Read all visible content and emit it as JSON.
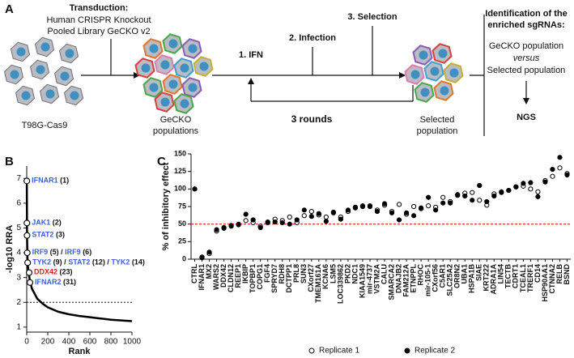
{
  "diagram": {
    "panel_label": "A",
    "transduction": {
      "title": "Transduction:",
      "lines": [
        "Human CRISPR Knockout",
        "Pooled Library GeCKO v2"
      ]
    },
    "steps": [
      "1. IFN",
      "2. Infection",
      "3. Selection"
    ],
    "loop": "3 rounds",
    "populations": [
      [
        "T98G-Cas9"
      ],
      [
        "GeCKO",
        "populations"
      ],
      [
        "Selected",
        "population"
      ]
    ],
    "identification": {
      "title": [
        "Identification of the",
        "enriched sgRNAs:"
      ],
      "comparison": [
        "GeCKO population",
        "versus",
        "Selected population"
      ],
      "method": "NGS"
    }
  },
  "chart_data": [
    {
      "type": "line",
      "panel_label": "B",
      "xlabel": "Rank",
      "ylabel": "-log10 RRA",
      "color": "#000000",
      "x": [
        1,
        3,
        6,
        10,
        20,
        31,
        50,
        100,
        150,
        200,
        300,
        400,
        500,
        600,
        700,
        800,
        900,
        1000
      ],
      "values": [
        7.0,
        4.7,
        3.9,
        3.5,
        3.15,
        2.85,
        2.55,
        2.15,
        1.95,
        1.8,
        1.62,
        1.52,
        1.45,
        1.4,
        1.35,
        1.3,
        1.27,
        1.24
      ],
      "xlim": [
        0,
        1000
      ],
      "ylim": [
        0.8,
        7.5
      ],
      "xticks": [
        0,
        200,
        400,
        600,
        800,
        1000
      ],
      "yticks": [
        1,
        2,
        3,
        4,
        5,
        6,
        7
      ],
      "threshold": 2,
      "annotations": [
        {
          "rank": 1,
          "value": 6.9,
          "parts": [
            {
              "text": "IFNAR1",
              "color": "#3f5fd8"
            },
            {
              "text": " (1)",
              "color": "#111111"
            }
          ]
        },
        {
          "rank": 2,
          "value": 5.2,
          "parts": [
            {
              "text": "JAK1",
              "color": "#3f5fd8"
            },
            {
              "text": " (2)",
              "color": "#111111"
            }
          ]
        },
        {
          "rank": 3,
          "value": 4.7,
          "parts": [
            {
              "text": "STAT2",
              "color": "#3f5fd8"
            },
            {
              "text": " (3)",
              "color": "#111111"
            }
          ]
        },
        {
          "rank": 5,
          "value": 4.0,
          "parts": [
            {
              "text": "IRF9",
              "color": "#3f5fd8"
            },
            {
              "text": " (5) / ",
              "color": "#111111"
            },
            {
              "text": "IRF9",
              "color": "#3f5fd8"
            },
            {
              "text": " (6)",
              "color": "#111111"
            }
          ]
        },
        {
          "rank": 9,
          "value": 3.6,
          "parts": [
            {
              "text": "TYK2",
              "color": "#3f5fd8"
            },
            {
              "text": " (9) / ",
              "color": "#111111"
            },
            {
              "text": "STAT2",
              "color": "#3f5fd8"
            },
            {
              "text": " (12) / ",
              "color": "#111111"
            },
            {
              "text": "TYK2",
              "color": "#3f5fd8"
            },
            {
              "text": " (14)",
              "color": "#111111"
            }
          ]
        },
        {
          "rank": 23,
          "value": 3.2,
          "parts": [
            {
              "text": "DDX42",
              "color": "#e02020"
            },
            {
              "text": " (23)",
              "color": "#111111"
            }
          ]
        },
        {
          "rank": 31,
          "value": 2.8,
          "parts": [
            {
              "text": "IFNAR2",
              "color": "#3f5fd8"
            },
            {
              "text": " (31)",
              "color": "#111111"
            }
          ]
        }
      ]
    },
    {
      "type": "scatter",
      "panel_label": "C",
      "ylabel": "% of inhibitory effect",
      "categories": [
        "CTRL",
        "IFNAR1",
        "MX2",
        "WARS2",
        "DDX42",
        "CLDN12",
        "REEP1",
        "IKBIP",
        "TOPBP1",
        "COPG1",
        "FGF4",
        "SPRYD7",
        "RDH8",
        "DCTPP1",
        "PRL8",
        "SUN3",
        "CXorf27",
        "TMEM161A",
        "KCNA6",
        "LSM5",
        "LOC339862",
        "PKD2",
        "NDC1",
        "KIAA1549",
        "mir-4737",
        "VSTM2A",
        "CALU",
        "SMARCA2",
        "DNAJB2",
        "FAM212A",
        "ETNPPL",
        "RHOC",
        "mir-105-1",
        "CXorf56",
        "C5AR1",
        "SLC25A2",
        "OR8N2",
        "UBA1",
        "HSPA1B",
        "SIAE",
        "KRT222",
        "ADRA1A",
        "LIN54",
        "TECTB",
        "CDRT1",
        "TCEAL1",
        "TRERF1",
        "CD14",
        "HSP90AA1",
        "CTNNA2",
        "RELB",
        "BSND"
      ],
      "series": [
        {
          "name": "Replicate 1",
          "marker": "open",
          "color": "#000000",
          "values": [
            100,
            3,
            8,
            40,
            44,
            48,
            50,
            55,
            52,
            47,
            52,
            57,
            55,
            60,
            52,
            62,
            68,
            63,
            60,
            66,
            60,
            68,
            74,
            75,
            76,
            70,
            77,
            68,
            78,
            64,
            75,
            72,
            76,
            74,
            88,
            82,
            91,
            94,
            95,
            84,
            77,
            93,
            96,
            98,
            103,
            104,
            100,
            96,
            112,
            118,
            130,
            122
          ]
        },
        {
          "name": "Replicate 2",
          "marker": "filled",
          "color": "#000000",
          "values": [
            100,
            2,
            10,
            42,
            45,
            47,
            49,
            64,
            56,
            45,
            53,
            53,
            52,
            50,
            56,
            70,
            61,
            65,
            54,
            67,
            57,
            70,
            73,
            76,
            75,
            68,
            79,
            66,
            56,
            66,
            62,
            73,
            88,
            70,
            80,
            80,
            92,
            90,
            84,
            105,
            82,
            90,
            95,
            98,
            103,
            108,
            109,
            89,
            110,
            128,
            145,
            120
          ]
        }
      ],
      "ylim": [
        0,
        150
      ],
      "yticks": [
        0,
        25,
        50,
        75,
        100,
        125,
        150
      ],
      "threshold": 50,
      "threshold_color": "#e02020"
    }
  ]
}
